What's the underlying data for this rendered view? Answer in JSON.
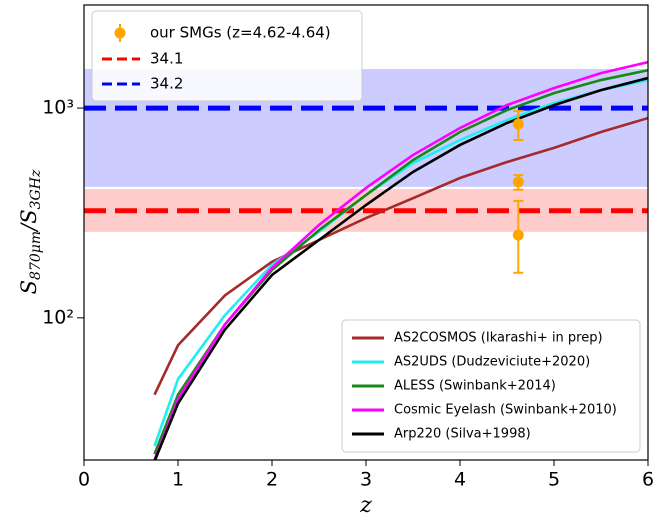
{
  "chart_data": {
    "type": "line",
    "x_label": "z",
    "y_label": [
      {
        "text": "S"
      },
      {
        "text": "870μm",
        "sub": true
      },
      {
        "text": "/S"
      },
      {
        "text": "3GHz",
        "sub": true
      }
    ],
    "xlim": [
      0,
      6
    ],
    "ylim": [
      21,
      3100
    ],
    "log_y": true,
    "xticks": [
      0,
      1,
      2,
      3,
      4,
      5,
      6
    ],
    "yticks": [
      {
        "value": 100,
        "label": "10²"
      },
      {
        "value": 1000,
        "label": "10³"
      }
    ],
    "x": [
      0.75,
      1,
      1.5,
      2,
      2.5,
      3,
      3.5,
      4,
      4.5,
      5,
      5.5,
      6
    ],
    "series": [
      {
        "name": "AS2COSMOS (Ikarashi+ in prep)",
        "color": "#a52a2a",
        "values": [
          43,
          74,
          128,
          185,
          235,
          299,
          372,
          464,
          553,
          646,
          769,
          896
        ]
      },
      {
        "name": "AS2UDS (Dudzeviciute+2020)",
        "color": "#22eef0",
        "values": [
          24.5,
          51,
          103,
          179,
          257,
          385,
          547,
          704,
          877,
          1056,
          1218,
          1360
        ]
      },
      {
        "name": "ALESS (Swinbank+2014)",
        "color": "#178a17",
        "values": [
          22.4,
          43,
          93,
          169,
          262,
          385,
          565,
          769,
          978,
          1178,
          1360,
          1515
        ]
      },
      {
        "name": "Cosmic Eyelash (Swinbank+2010)",
        "color": "#ff00ff",
        "values": [
          21,
          41,
          93,
          173,
          277,
          416,
          597,
          803,
          1033,
          1245,
          1468,
          1656
        ]
      },
      {
        "name": "Arp220 (Silva+1998)",
        "color": "#000000",
        "values": [
          20.7,
          39,
          88,
          160,
          235,
          345,
          496,
          667,
          849,
          1033,
          1218,
          1390
        ]
      }
    ],
    "hlines": [
      {
        "name": "34.1",
        "color": "#ff0000",
        "value": 324,
        "band": [
          257,
          411
        ]
      },
      {
        "name": "34.2",
        "color": "#0000ff",
        "value": 1000,
        "band": [
          421,
          1535
        ]
      }
    ],
    "points": {
      "name": "our SMGs (z=4.62-4.64)",
      "color": "#ffa500",
      "x": [
        4.62,
        4.62,
        4.62
      ],
      "values": [
        839,
        445,
        248
      ],
      "low": [
        704,
        408,
        164
      ],
      "high": [
        968,
        479,
        361
      ]
    },
    "legend_main": "lower right",
    "legend_lines": "upper left"
  }
}
